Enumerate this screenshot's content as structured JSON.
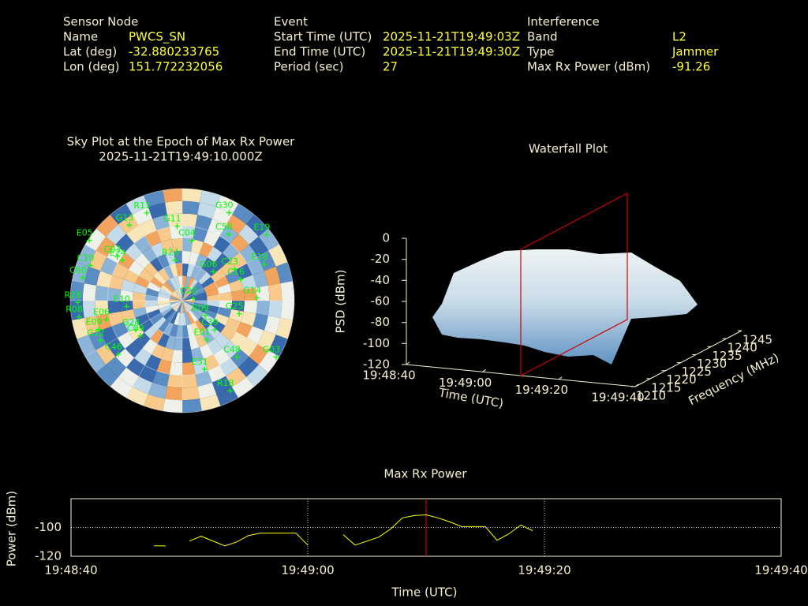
{
  "header": {
    "sensor": {
      "title": "Sensor Node",
      "rows": [
        [
          "Name",
          "PWCS_SN"
        ],
        [
          "Lat (deg)",
          "-32.880233765"
        ],
        [
          "Lon (deg)",
          "151.772232056"
        ]
      ]
    },
    "event": {
      "title": "Event",
      "rows": [
        [
          "Start Time (UTC)",
          "2025-11-21T19:49:03Z"
        ],
        [
          "End Time (UTC)",
          "2025-11-21T19:49:30Z"
        ],
        [
          "Period (sec)",
          "27"
        ]
      ]
    },
    "interference": {
      "title": "Interference",
      "rows": [
        [
          "Band",
          "L2"
        ],
        [
          "Type",
          "Jammer"
        ],
        [
          "Max Rx Power (dBm)",
          "-91.26"
        ]
      ]
    }
  },
  "chart_data": [
    {
      "type": "skyplot",
      "title": "Sky Plot at the Epoch of Max Rx Power",
      "subtitle": "2025-11-21T19:49:10.000Z",
      "color": "#00ff00",
      "labels": [
        "G30",
        "E19",
        "R11",
        "G13",
        "G11",
        "E05",
        "C58",
        "C04",
        "E18",
        "C03",
        "E24",
        "R24",
        "G06",
        "C23",
        "C10",
        "C60",
        "C16",
        "G14",
        "R28",
        "E10",
        "C20",
        "R08",
        "E06",
        "R09",
        "G25",
        "E09",
        "G24",
        "C39",
        "E01",
        "G12",
        "C46",
        "C48",
        "G03",
        "E31",
        "R18",
        "C09"
      ],
      "azimuth": [
        28,
        52,
        338,
        325,
        356,
        303,
        35,
        9,
        66,
        304,
        304,
        350,
        47,
        59,
        291,
        283,
        70,
        88,
        269,
        264,
        78,
        261,
        256,
        123,
        103,
        251,
        238,
        132,
        148,
        244,
        230,
        136,
        121,
        162,
        152,
        230
      ],
      "elevation": [
        10,
        4,
        14,
        16,
        30,
        1,
        25,
        41,
        18,
        27,
        32,
        57,
        56,
        41,
        11,
        8,
        40,
        30,
        6,
        45,
        81,
        6,
        27,
        68,
        43,
        19,
        46,
        55,
        53,
        17,
        23,
        27,
        2,
        32,
        8,
        46
      ]
    },
    {
      "type": "waterfall",
      "title": "Waterfall Plot",
      "xlabel": "Time (UTC)",
      "ylabel": "Frequency (MHz)",
      "zlabel": "PSD (dBm)",
      "xlim": [
        "19:48:40",
        "19:49:40"
      ],
      "xticks": [
        "19:48:40",
        "19:49:00",
        "19:49:20",
        "19:49:40"
      ],
      "ylim": [
        1210,
        1245
      ],
      "yticks": [
        1210,
        1215,
        1220,
        1225,
        1230,
        1235,
        1240,
        1245
      ],
      "zlim": [
        -120,
        0
      ],
      "zticks": [
        0,
        -20,
        -40,
        -60,
        -80,
        -100,
        -120
      ],
      "marker_x": "19:49:10",
      "marker_color": "#cc0000"
    },
    {
      "type": "line",
      "title": "Max Rx Power",
      "xlabel": "Time (UTC)",
      "ylabel": "Power (dBm)",
      "color": "#ffff00",
      "x": [
        "19:48:47",
        "19:48:48",
        "19:48:49",
        "19:48:50",
        "19:48:51",
        "19:48:53",
        "19:48:54",
        "19:48:55",
        "19:48:56",
        "19:48:57",
        "19:48:59",
        "19:49:00",
        "19:49:01",
        "19:49:03",
        "19:49:04",
        "19:49:06",
        "19:49:07",
        "19:49:08",
        "19:49:09",
        "19:49:10",
        "19:49:11",
        "19:49:12",
        "19:49:13",
        "19:49:15",
        "19:49:16",
        "19:49:17",
        "19:49:18",
        "19:49:19"
      ],
      "values": [
        -112.7,
        -112.8,
        null,
        -109.4,
        -106.1,
        -112.8,
        -110,
        -105.6,
        -103.9,
        -103.9,
        -103.9,
        -112.2,
        null,
        -105,
        -112.2,
        -106.7,
        -101.1,
        -93.3,
        -91.7,
        -91.26,
        -93.3,
        -96.1,
        -99.4,
        -99.4,
        -108.9,
        -104.4,
        -98.3,
        -102.2
      ],
      "xlim": [
        "19:48:40",
        "19:49:40"
      ],
      "xticks": [
        "19:48:40",
        "19:49:00",
        "19:49:20",
        "19:49:40"
      ],
      "ylim": [
        -120,
        -80
      ],
      "yticks": [
        -100,
        -120
      ],
      "grid": true,
      "marker_x": "19:49:10",
      "marker_color": "#cc0000"
    }
  ]
}
